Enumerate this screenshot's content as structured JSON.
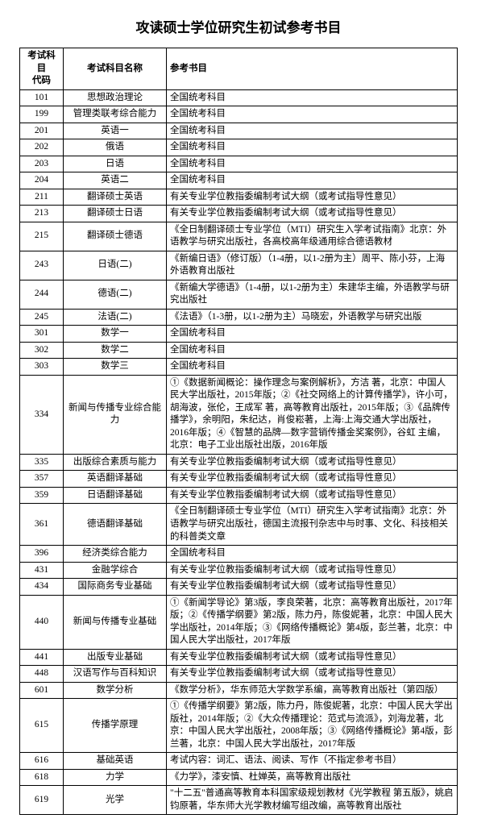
{
  "title": "攻读硕士学位研究生初试参考书目",
  "headers": {
    "code": "考试科目\n代码",
    "name": "考试科目名称",
    "ref": "参考书目"
  },
  "rows": [
    {
      "code": "101",
      "name": "思想政治理论",
      "ref": "全国统考科目"
    },
    {
      "code": "199",
      "name": "管理类联考综合能力",
      "ref": "全国统考科目"
    },
    {
      "code": "201",
      "name": "英语一",
      "ref": "全国统考科目"
    },
    {
      "code": "202",
      "name": "俄语",
      "ref": "全国统考科目"
    },
    {
      "code": "203",
      "name": "日语",
      "ref": "全国统考科目"
    },
    {
      "code": "204",
      "name": "英语二",
      "ref": "全国统考科目"
    },
    {
      "code": "211",
      "name": "翻译硕士英语",
      "ref": "有关专业学位教指委编制考试大纲（或考试指导性意见）"
    },
    {
      "code": "213",
      "name": "翻译硕士日语",
      "ref": "有关专业学位教指委编制考试大纲（或考试指导性意见）"
    },
    {
      "code": "215",
      "name": "翻译硕士德语",
      "ref": "《全日制翻译硕士专业学位（MTI）研究生入学考试指南》北京：外语教学与研究出版社，各高校高年级通用综合德语教材"
    },
    {
      "code": "243",
      "name": "日语(二)",
      "ref": "《新编日语》（修订版）（1-4册，以1-2册为主）周平、陈小芬，上海外语教育出版社"
    },
    {
      "code": "244",
      "name": "德语(二)",
      "ref": "《新编大学德语》（1-4册，以1-2册为主）朱建华主编，外语教学与研究出版社"
    },
    {
      "code": "245",
      "name": "法语(二)",
      "ref": "《法语》（1-3册，以1-2册为主）马晓宏，外语教学与研究出版"
    },
    {
      "code": "301",
      "name": "数学一",
      "ref": "全国统考科目"
    },
    {
      "code": "302",
      "name": "数学二",
      "ref": "全国统考科目"
    },
    {
      "code": "303",
      "name": "数学三",
      "ref": "全国统考科目"
    },
    {
      "code": "334",
      "name": "新闻与传播专业综合能力",
      "ref": "①《数据新闻概论：操作理念与案例解析》，方洁 著，北京：中国人民大学出版社，2015年版；②《社交网络上的计算传播学》，许小可，胡海波，张伦，王成军 著，高等教育出版社，2015年版；③《品牌传播学》，余明阳，朱纪达，肖俊崧著，上海:上海交通大学出版社，2016年版；④《智慧的品牌—数字营销传播金奖案例》，谷虹 主编，北京：电子工业出版社出版，2016年版"
    },
    {
      "code": "335",
      "name": "出版综合素质与能力",
      "ref": "有关专业学位教指委编制考试大纲（或考试指导性意见）"
    },
    {
      "code": "357",
      "name": "英语翻译基础",
      "ref": "有关专业学位教指委编制考试大纲（或考试指导性意见）"
    },
    {
      "code": "359",
      "name": "日语翻译基础",
      "ref": "有关专业学位教指委编制考试大纲（或考试指导性意见）"
    },
    {
      "code": "361",
      "name": "德语翻译基础",
      "ref": "《全日制翻译硕士专业学位（MTI）研究生入学考试指南》北京：外语教学与研究出版社，德国主流报刊杂志中与时事、文化、科技相关的科普类文章"
    },
    {
      "code": "396",
      "name": "经济类综合能力",
      "ref": "全国统考科目"
    },
    {
      "code": "431",
      "name": "金融学综合",
      "ref": "有关专业学位教指委编制考试大纲（或考试指导性意见）"
    },
    {
      "code": "434",
      "name": "国际商务专业基础",
      "ref": "有关专业学位教指委编制考试大纲（或考试指导性意见）"
    },
    {
      "code": "440",
      "name": "新闻与传播专业基础",
      "ref": "①《新闻学导论》第3版，李良荣著，北京：高等教育出版社，2017年版；②《传播学纲要》第2版，陈力丹，陈俊妮著，北京：中国人民大学出版社，2014年版；③《网络传播概论》第4版，彭兰著，北京：中国人民大学出版社，2017年版"
    },
    {
      "code": "441",
      "name": "出版专业基础",
      "ref": "有关专业学位教指委编制考试大纲（或考试指导性意见）"
    },
    {
      "code": "448",
      "name": "汉语写作与百科知识",
      "ref": "有关专业学位教指委编制考试大纲（或考试指导性意见）"
    },
    {
      "code": "601",
      "name": "数学分析",
      "ref": "《数学分析》，华东师范大学数学系编，高等教育出版社（第四版）"
    },
    {
      "code": "615",
      "name": "传播学原理",
      "ref": "①《传播学纲要》第2版，陈力丹，陈俊妮著，北京：中国人民大学出版社，2014年版；②《大众传播理论：范式与流派》，刘海龙著，北京：中国人民大学出版社，2008年版；③《网络传播概论》第4版，彭兰著，北京：中国人民大学出版社，2017年版"
    },
    {
      "code": "616",
      "name": "基础英语",
      "ref": "考试内容：词汇、语法、阅读、写作（不指定参考书目）"
    },
    {
      "code": "618",
      "name": "力学",
      "ref": "《力学》，漆安慎、杜婵英，高等教育出版社"
    },
    {
      "code": "619",
      "name": "光学",
      "ref": "\"十二五\"普通高等教育本科国家级规划教材《光学教程 第五版》，姚启钧原著，华东师大光学教材编写组改编，高等教育出版社"
    }
  ]
}
